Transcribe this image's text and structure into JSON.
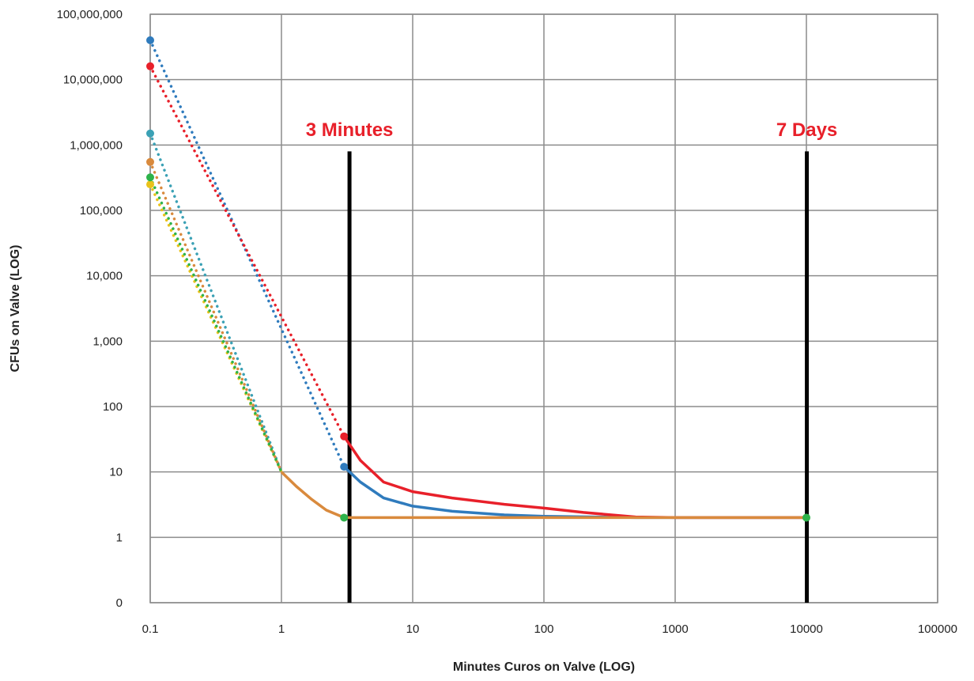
{
  "chart_data": {
    "type": "line",
    "xlabel": "Minutes Curos on Valve (LOG)",
    "ylabel": "CFUs on Valve (LOG)",
    "x_scale": "log",
    "y_scale": "log",
    "xlim": [
      0.1,
      100000
    ],
    "ylim": [
      0.1,
      100000000
    ],
    "grid": true,
    "x_ticks": [
      {
        "value": 0.1,
        "label": "0.1"
      },
      {
        "value": 1,
        "label": "1"
      },
      {
        "value": 10,
        "label": "10"
      },
      {
        "value": 100,
        "label": "100"
      },
      {
        "value": 1000,
        "label": "1000"
      },
      {
        "value": 10000,
        "label": "10000"
      },
      {
        "value": 100000,
        "label": "100000"
      }
    ],
    "y_ticks": [
      {
        "value": 0.1,
        "label": "0"
      },
      {
        "value": 1,
        "label": "1"
      },
      {
        "value": 10,
        "label": "10"
      },
      {
        "value": 100,
        "label": "100"
      },
      {
        "value": 1000,
        "label": "1,000"
      },
      {
        "value": 10000,
        "label": "10,000"
      },
      {
        "value": 100000,
        "label": "100,000"
      },
      {
        "value": 1000000,
        "label": "1,000,000"
      },
      {
        "value": 10000000,
        "label": "10,000,000"
      },
      {
        "value": 100000000,
        "label": "100,000,000"
      }
    ],
    "annotations": [
      {
        "text": "3 Minutes",
        "x": 3.3,
        "color": "#e8202a"
      },
      {
        "text": "7 Days",
        "x": 10080,
        "color": "#e8202a"
      }
    ],
    "series": [
      {
        "color": "#2f7bbd",
        "dotted": [
          [
            0.1,
            40000000
          ],
          [
            3,
            12
          ]
        ],
        "solid": [
          [
            3,
            12
          ],
          [
            4,
            7
          ],
          [
            6,
            4
          ],
          [
            10,
            3
          ],
          [
            20,
            2.5
          ],
          [
            50,
            2.2
          ],
          [
            100,
            2.1
          ],
          [
            500,
            2
          ],
          [
            10000,
            2
          ]
        ],
        "markers": [
          [
            0.1,
            40000000
          ],
          [
            3,
            12
          ]
        ]
      },
      {
        "color": "#e8202a",
        "dotted": [
          [
            0.1,
            16000000
          ],
          [
            3,
            35
          ]
        ],
        "solid": [
          [
            3,
            35
          ],
          [
            4,
            15
          ],
          [
            6,
            7
          ],
          [
            10,
            5
          ],
          [
            20,
            4
          ],
          [
            50,
            3.2
          ],
          [
            100,
            2.8
          ],
          [
            200,
            2.4
          ],
          [
            500,
            2.05
          ],
          [
            1000,
            2
          ],
          [
            10000,
            2
          ]
        ],
        "markers": [
          [
            0.1,
            16000000
          ],
          [
            3,
            35
          ]
        ]
      },
      {
        "color": "#3ba1b5",
        "dotted": [
          [
            0.1,
            1500000
          ],
          [
            1,
            10
          ]
        ],
        "solid": [],
        "markers": [
          [
            0.1,
            1500000
          ]
        ]
      },
      {
        "color": "#e9c21a",
        "dotted": [
          [
            0.1,
            250000
          ],
          [
            1,
            10
          ]
        ],
        "solid": [],
        "markers": [
          [
            0.1,
            250000
          ]
        ]
      },
      {
        "color": "#2db34a",
        "dotted": [
          [
            0.1,
            320000
          ],
          [
            1,
            10
          ]
        ],
        "solid": [],
        "markers": [
          [
            0.1,
            320000
          ],
          [
            3,
            2
          ],
          [
            10000,
            2
          ]
        ]
      },
      {
        "color": "#d98a3d",
        "dotted": [
          [
            0.1,
            550000
          ],
          [
            1,
            10
          ]
        ],
        "solid": [
          [
            1,
            10
          ],
          [
            1.3,
            6
          ],
          [
            1.7,
            3.8
          ],
          [
            2.2,
            2.6
          ],
          [
            3,
            2
          ],
          [
            10000,
            2
          ]
        ],
        "markers": [
          [
            0.1,
            550000
          ]
        ]
      }
    ],
    "vlines": [
      {
        "x": 3.3,
        "y_top": 800000
      },
      {
        "x": 10080,
        "y_top": 800000
      }
    ]
  }
}
